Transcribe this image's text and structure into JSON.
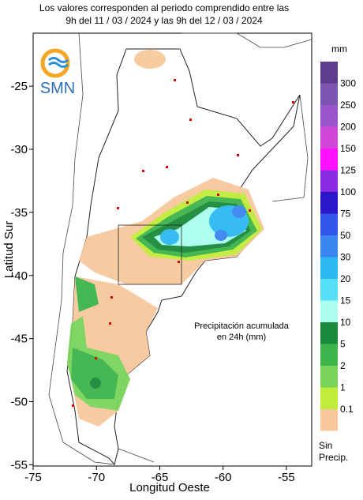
{
  "header": {
    "line1": "Los valores corresponden al periodo comprendido entre las",
    "line2": "9h del 11 / 03 / 2024  y las 9h del 12 / 03 / 2024"
  },
  "logo": "SMN",
  "annotation": [
    "Precipitación acumulada",
    "en 24h (mm)"
  ],
  "axes": {
    "x_label": "Longitud Oeste",
    "y_label": "Latitud Sur",
    "xlim": [
      -75,
      -53
    ],
    "ylim": [
      -55.1,
      -20.8
    ],
    "xticks": [
      -75,
      -70,
      -65,
      -60,
      -55
    ],
    "yticks": [
      -25,
      -30,
      -35,
      -40,
      -45,
      -50,
      -55
    ]
  },
  "legend": {
    "unit": "mm",
    "levels": [
      {
        "label": "300",
        "color": "#7b55b0"
      },
      {
        "label": "250",
        "color": "#9a55cc"
      },
      {
        "label": "200",
        "color": "#d047d8"
      },
      {
        "label": "150",
        "color": "#ff10ff"
      },
      {
        "label": "125",
        "color": "#8a2be2"
      },
      {
        "label": "100",
        "color": "#2a18c8"
      },
      {
        "label": "75",
        "color": "#3355e8"
      },
      {
        "label": "50",
        "color": "#3a86f0"
      },
      {
        "label": "30",
        "color": "#2cb8f2"
      },
      {
        "label": "20",
        "color": "#55e0f5"
      },
      {
        "label": "15",
        "color": "#aaffee"
      },
      {
        "label": "10",
        "color": "#1a8a3a"
      },
      {
        "label": "5",
        "color": "#3cb54a"
      },
      {
        "label": "2",
        "color": "#7ad45a"
      },
      {
        "label": "1",
        "color": "#c0ec3c"
      },
      {
        "label": "0.1",
        "color": "#f8c89c"
      }
    ],
    "none": [
      "Sin",
      "Precip."
    ]
  }
}
